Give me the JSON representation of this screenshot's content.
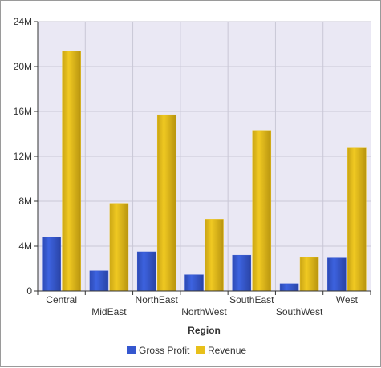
{
  "chart_data": {
    "type": "bar",
    "title": "",
    "xlabel": "Region",
    "ylabel": "",
    "categories": [
      "Central",
      "MidEast",
      "NorthEast",
      "NorthWest",
      "SouthEast",
      "SouthWest",
      "West"
    ],
    "series": [
      {
        "name": "Gross Profit",
        "color": "#3557cf",
        "values": [
          4.8,
          1.8,
          3.5,
          1.45,
          3.2,
          0.65,
          2.95
        ]
      },
      {
        "name": "Revenue",
        "color": "#e8c01a",
        "values": [
          21.4,
          7.8,
          15.7,
          6.4,
          14.3,
          3.0,
          12.8
        ]
      }
    ],
    "ylim": [
      0,
      24
    ],
    "yticks": [
      0,
      4,
      8,
      12,
      16,
      20,
      24
    ],
    "ytick_labels": [
      "0",
      "4M",
      "8M",
      "12M",
      "16M",
      "20M",
      "24M"
    ],
    "grid": true,
    "legend_position": "bottom",
    "plot_background": "#eae8f4",
    "grid_color": "#c9c7d6"
  }
}
